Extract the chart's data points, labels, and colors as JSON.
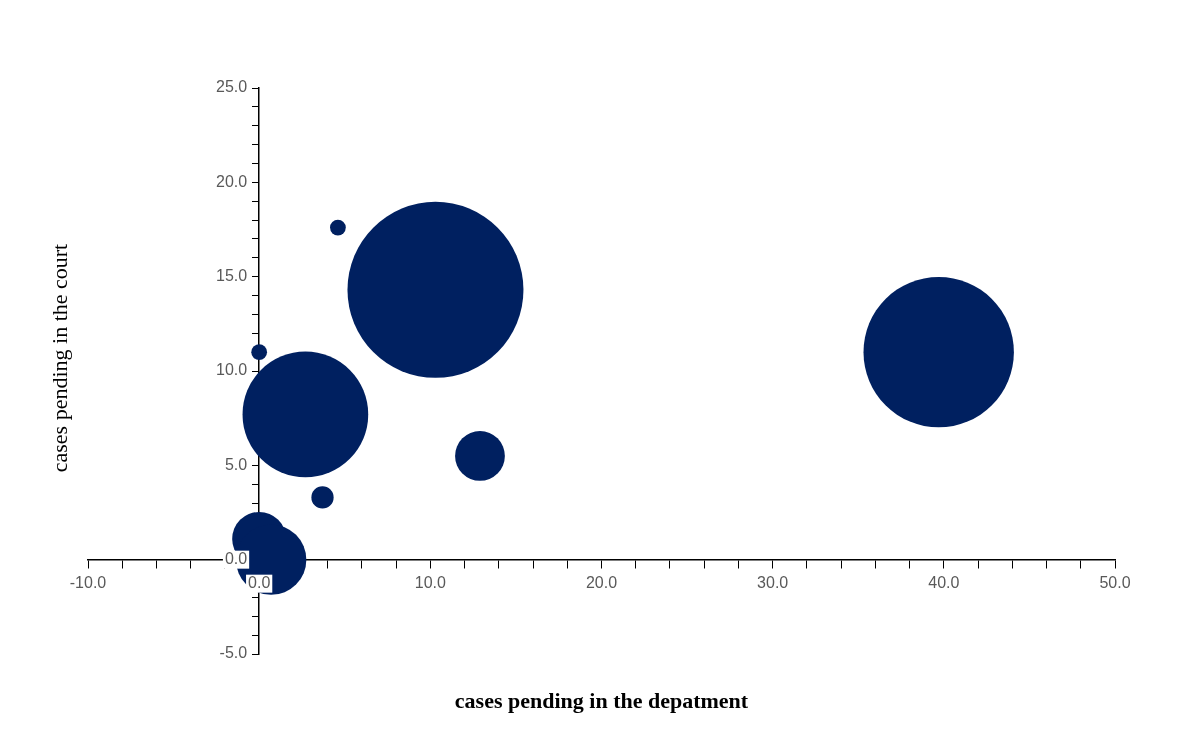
{
  "chart_data": {
    "type": "bubble",
    "xlabel": "cases pending in the depatment",
    "ylabel": "cases pending in the court",
    "x": [
      4.6,
      0.0,
      10.3,
      39.7,
      2.7,
      12.9,
      3.7,
      0.0,
      0.7
    ],
    "values": [
      17.6,
      11.0,
      14.3,
      11.0,
      7.7,
      5.5,
      3.3,
      1.1,
      0.0
    ],
    "sizes": [
      0.008,
      0.008,
      1,
      0.73,
      0.51,
      0.08,
      0.016,
      0.094,
      0.16
    ],
    "color": "#002060",
    "xlim": [
      -10,
      50
    ],
    "xticks": [
      {
        "value": -10,
        "label": "-10.0"
      },
      {
        "value": -8,
        "label": null
      },
      {
        "value": -6,
        "label": null
      },
      {
        "value": -4,
        "label": null
      },
      {
        "value": -2,
        "label": null
      },
      {
        "value": 0,
        "label": "0.0"
      },
      {
        "value": 2,
        "label": null
      },
      {
        "value": 4,
        "label": null
      },
      {
        "value": 6,
        "label": null
      },
      {
        "value": 8,
        "label": null
      },
      {
        "value": 10,
        "label": "10.0"
      },
      {
        "value": 12,
        "label": null
      },
      {
        "value": 14,
        "label": null
      },
      {
        "value": 16,
        "label": null
      },
      {
        "value": 18,
        "label": null
      },
      {
        "value": 20,
        "label": "20.0"
      },
      {
        "value": 22,
        "label": null
      },
      {
        "value": 24,
        "label": null
      },
      {
        "value": 26,
        "label": null
      },
      {
        "value": 28,
        "label": null
      },
      {
        "value": 30,
        "label": "30.0"
      },
      {
        "value": 32,
        "label": null
      },
      {
        "value": 34,
        "label": null
      },
      {
        "value": 36,
        "label": null
      },
      {
        "value": 38,
        "label": null
      },
      {
        "value": 40,
        "label": "40.0"
      },
      {
        "value": 42,
        "label": null
      },
      {
        "value": 44,
        "label": null
      },
      {
        "value": 46,
        "label": null
      },
      {
        "value": 48,
        "label": null
      },
      {
        "value": 50,
        "label": "50.0"
      }
    ],
    "ylim": [
      -5,
      25
    ],
    "yticks": [
      {
        "value": -5,
        "label": "-5.0"
      },
      {
        "value": -4,
        "label": null
      },
      {
        "value": -3,
        "label": null
      },
      {
        "value": -2,
        "label": null
      },
      {
        "value": -1,
        "label": null
      },
      {
        "value": 0,
        "label": "0.0"
      },
      {
        "value": 1,
        "label": null
      },
      {
        "value": 2,
        "label": null
      },
      {
        "value": 3,
        "label": null
      },
      {
        "value": 4,
        "label": null
      },
      {
        "value": 5,
        "label": "5.0"
      },
      {
        "value": 6,
        "label": null
      },
      {
        "value": 7,
        "label": null
      },
      {
        "value": 8,
        "label": null
      },
      {
        "value": 9,
        "label": null
      },
      {
        "value": 10,
        "label": "10.0"
      },
      {
        "value": 11,
        "label": null
      },
      {
        "value": 12,
        "label": null
      },
      {
        "value": 13,
        "label": null
      },
      {
        "value": 14,
        "label": null
      },
      {
        "value": 15,
        "label": "15.0"
      },
      {
        "value": 16,
        "label": null
      },
      {
        "value": 17,
        "label": null
      },
      {
        "value": 18,
        "label": null
      },
      {
        "value": 19,
        "label": null
      },
      {
        "value": 20,
        "label": "20.0"
      },
      {
        "value": 21,
        "label": null
      },
      {
        "value": 22,
        "label": null
      },
      {
        "value": 23,
        "label": null
      },
      {
        "value": 24,
        "label": null
      },
      {
        "value": 25,
        "label": "25.0"
      }
    ]
  }
}
